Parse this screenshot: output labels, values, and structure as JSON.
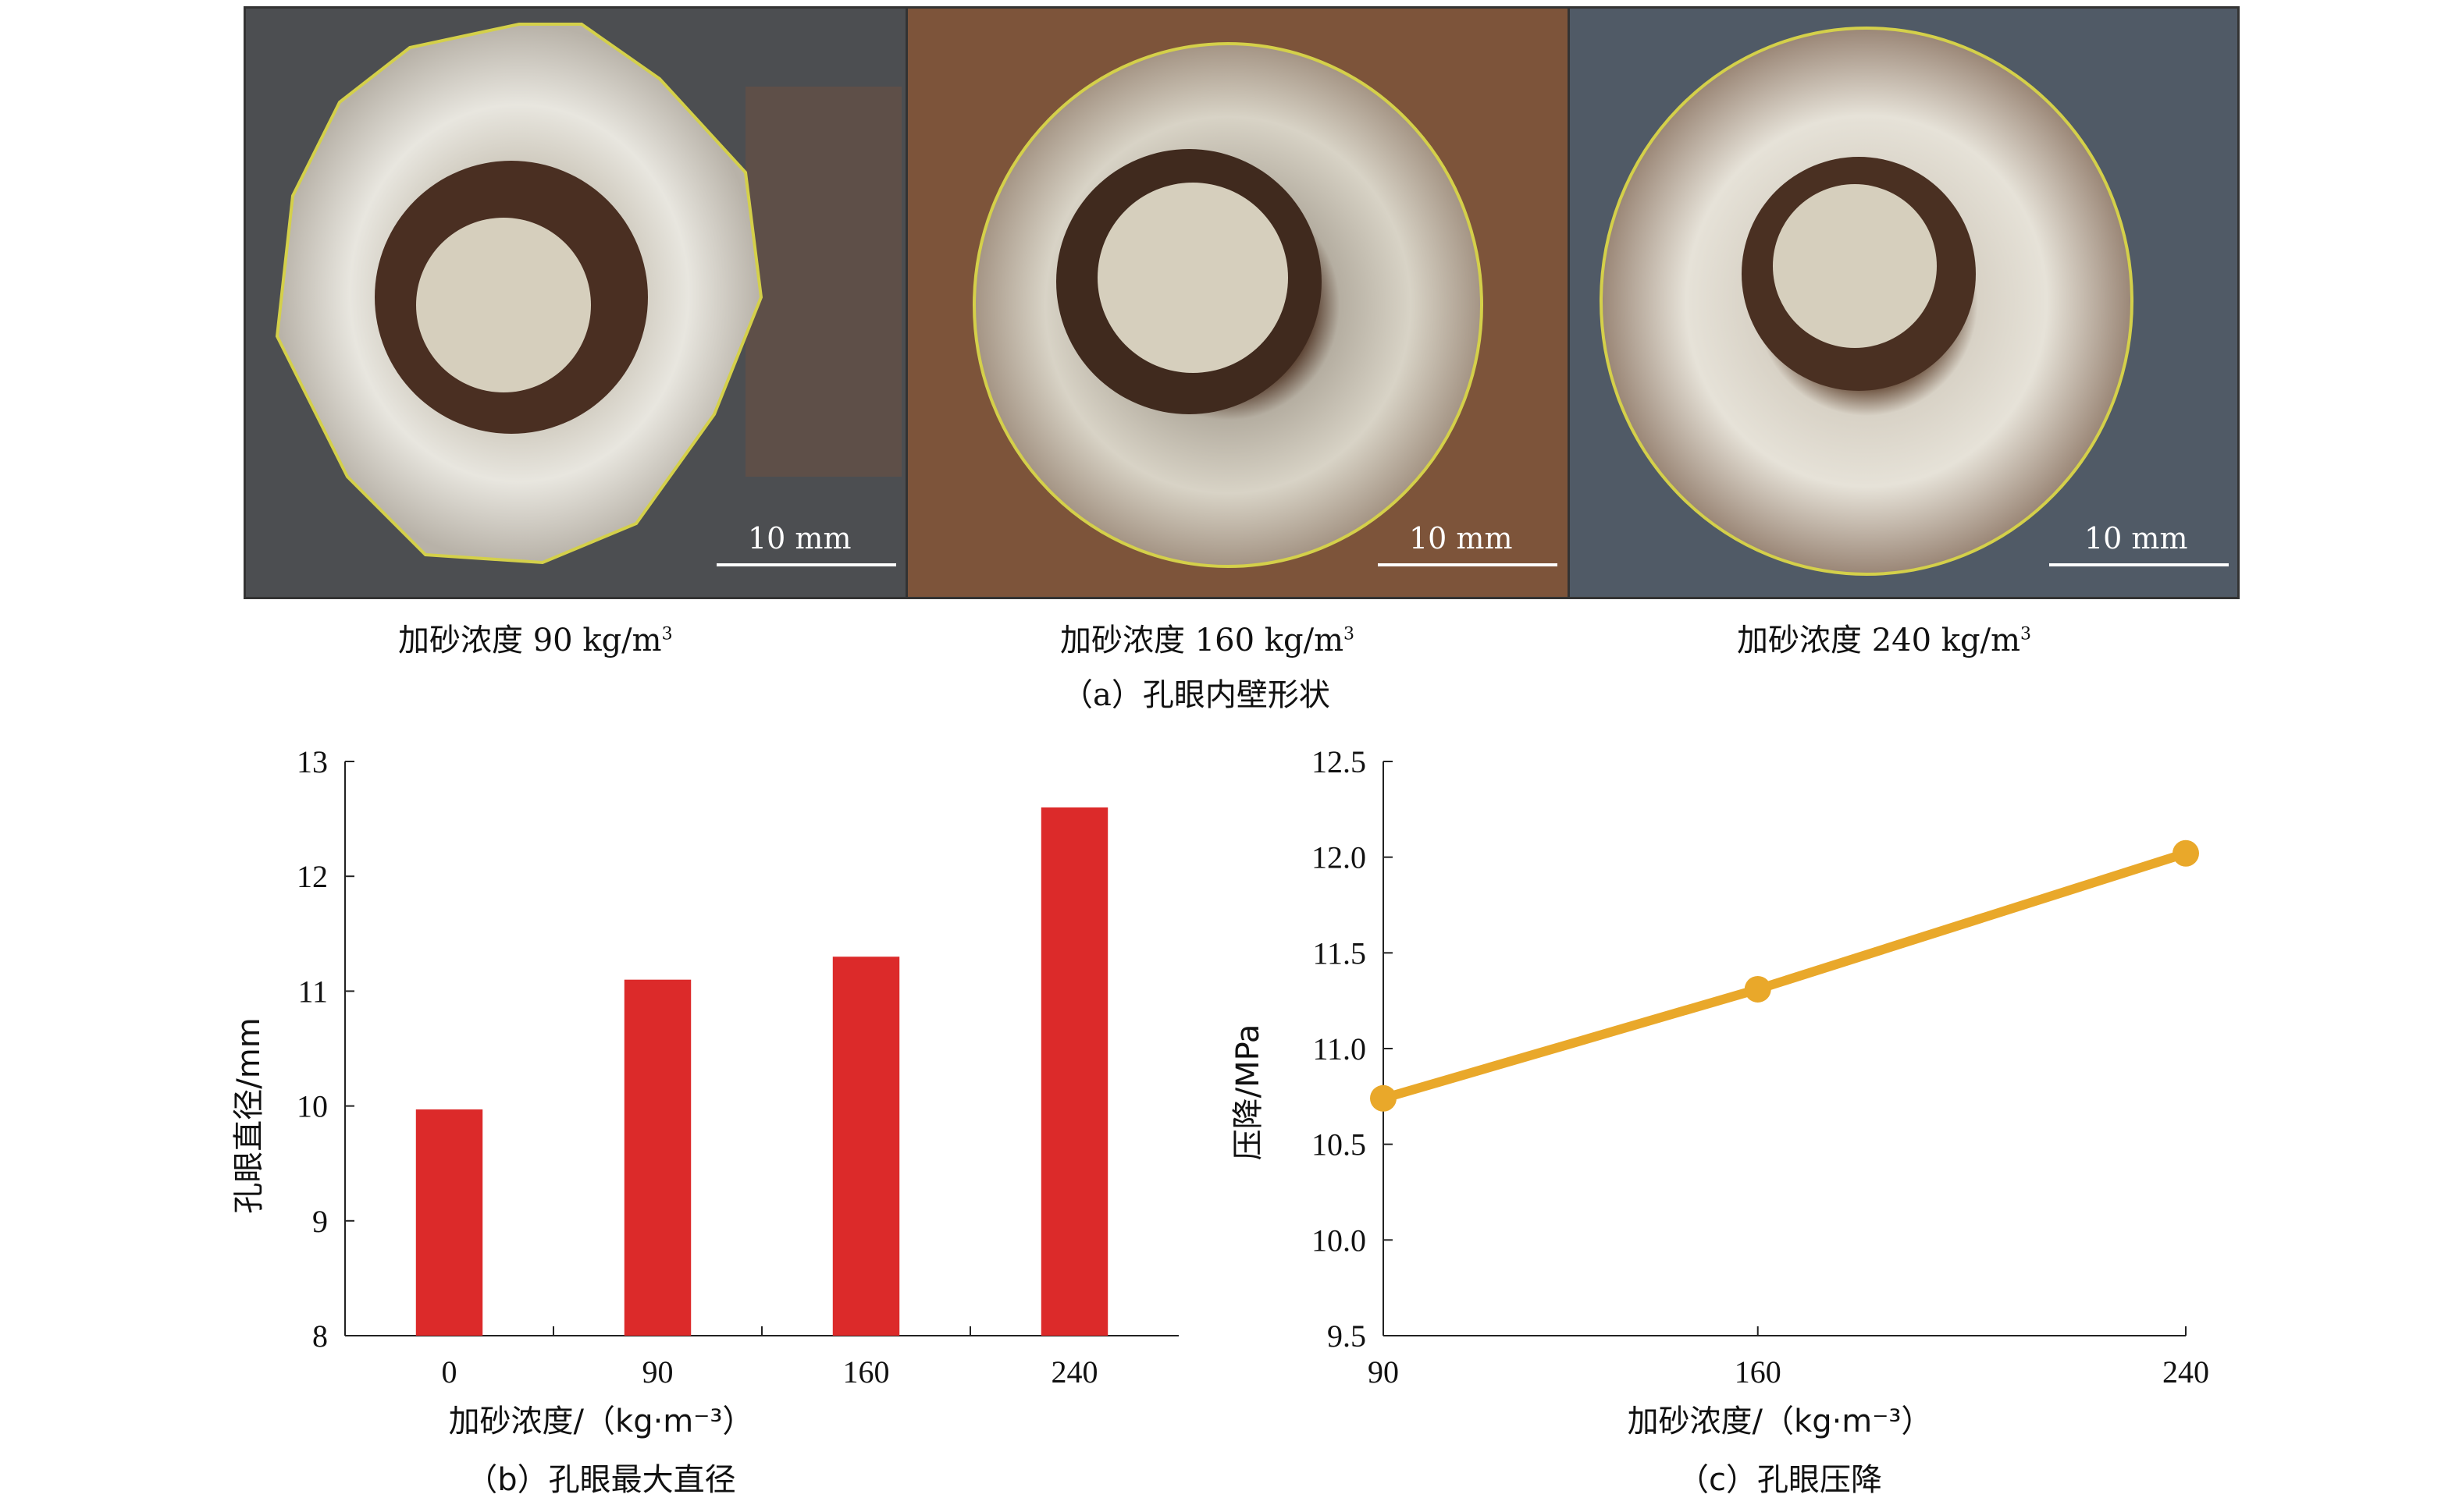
{
  "panel_a": {
    "caption": "（a）孔眼内壁形状",
    "photos": [
      {
        "label": "加砂浓度 90 kg/m",
        "sup": "3",
        "scale": "10 mm"
      },
      {
        "label": "加砂浓度 160 kg/m",
        "sup": "3",
        "scale": "10 mm"
      },
      {
        "label": "加砂浓度 240 kg/m",
        "sup": "3",
        "scale": "10 mm"
      }
    ]
  },
  "chart_data": [
    {
      "type": "bar",
      "panel": "b",
      "caption": "（b）孔眼最大直径",
      "categories": [
        "0",
        "90",
        "160",
        "240"
      ],
      "values": [
        9.97,
        11.1,
        11.3,
        12.6
      ],
      "xlabel": "加砂浓度/（kg·m⁻³）",
      "ylabel": "孔眼直径/mm",
      "ylim": [
        8,
        13
      ],
      "yticks": [
        "8",
        "9",
        "10",
        "11",
        "12",
        "13"
      ],
      "bar_color": "#dc2a2a"
    },
    {
      "type": "line",
      "panel": "c",
      "caption": "（c）孔眼压降",
      "x": [
        90,
        160,
        240
      ],
      "y": [
        10.74,
        11.31,
        12.02
      ],
      "xticks": [
        "90",
        "160",
        "240"
      ],
      "xlabel": "加砂浓度/（kg·m⁻³）",
      "ylabel": "压降/MPa",
      "ylim": [
        9.5,
        12.5
      ],
      "yticks": [
        "9.5",
        "10.0",
        "10.5",
        "11.0",
        "11.5",
        "12.0",
        "12.5"
      ],
      "line_color": "#e9a82a"
    }
  ]
}
